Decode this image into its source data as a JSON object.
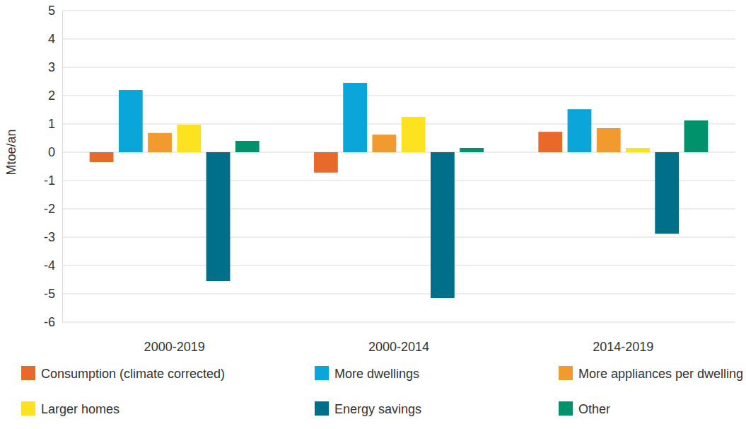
{
  "chart_data": {
    "type": "bar",
    "y_label": "Mtoe/an",
    "categories": [
      "2000-2019",
      "2000-2014",
      "2014-2019"
    ],
    "series": [
      {
        "name": "Consumption (climate corrected)",
        "color": "#e8692a",
        "values": [
          -0.35,
          -0.72,
          0.72
        ]
      },
      {
        "name": "More dwellings",
        "color": "#0aa6d9",
        "values": [
          2.2,
          2.45,
          1.52
        ]
      },
      {
        "name": "More appliances per dwelling",
        "color": "#f39a2f",
        "values": [
          0.68,
          0.62,
          0.85
        ]
      },
      {
        "name": "Larger homes",
        "color": "#fde21f",
        "values": [
          0.97,
          1.25,
          0.15
        ]
      },
      {
        "name": "Energy savings",
        "color": "#00708a",
        "values": [
          -4.55,
          -5.15,
          -2.88
        ]
      },
      {
        "name": "Other",
        "color": "#00936b",
        "values": [
          0.4,
          0.15,
          1.12
        ]
      }
    ],
    "ylim": [
      -6,
      5
    ],
    "yticks": [
      -6,
      -5,
      -4,
      -3,
      -2,
      -1,
      0,
      1,
      2,
      3,
      4,
      5
    ],
    "grid": true,
    "legend": "bottom"
  }
}
